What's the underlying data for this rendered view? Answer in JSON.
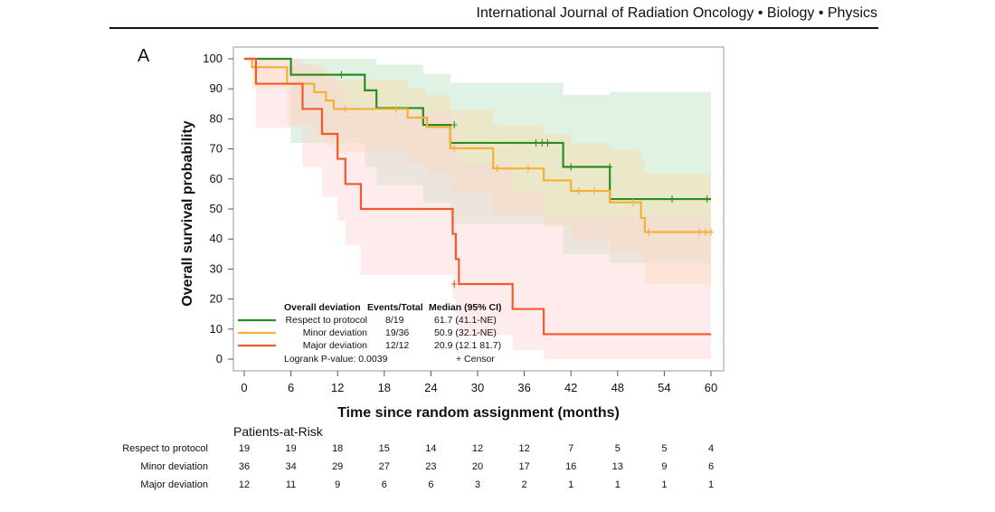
{
  "header": {
    "journal": "International Journal of Radiation Oncology • Biology • Physics",
    "panel": "A"
  },
  "chart_data": {
    "type": "line",
    "subtype": "kaplan-meier",
    "xlabel": "Time since random assignment (months)",
    "ylabel": "Overall survival probability",
    "xlim": [
      0,
      60
    ],
    "ylim": [
      0,
      100
    ],
    "xticks": [
      0,
      6,
      12,
      18,
      24,
      30,
      36,
      42,
      48,
      54,
      60
    ],
    "yticks": [
      0,
      10,
      20,
      30,
      40,
      50,
      60,
      70,
      80,
      90,
      100
    ],
    "legend": {
      "placement": "bottom-left",
      "header_group": "Overall deviation",
      "header_events": "Events/Total",
      "header_median": "Median (95% CI)",
      "logrank": "Logrank P-value: 0.0039",
      "censor": "+ Censor"
    },
    "series": [
      {
        "name": "Respect to protocol",
        "events": "8/19",
        "median": "61.7 (41.1-NE)",
        "color": "#2e8b22",
        "band_color": "#b9e3c4",
        "steps": [
          [
            0,
            100
          ],
          [
            6,
            94.7
          ],
          [
            15.5,
            89.5
          ],
          [
            17,
            83.6
          ],
          [
            23,
            78
          ],
          [
            26.5,
            72
          ],
          [
            41,
            64
          ],
          [
            47,
            53.3
          ],
          [
            60,
            53.3
          ]
        ],
        "ci_steps": [
          [
            0,
            100,
            100
          ],
          [
            6,
            100,
            72
          ],
          [
            15.5,
            100,
            64
          ],
          [
            17,
            98,
            58
          ],
          [
            23,
            95,
            52
          ],
          [
            26.5,
            92,
            45
          ],
          [
            41,
            88,
            35
          ],
          [
            47,
            89,
            32
          ],
          [
            60,
            89,
            32
          ]
        ],
        "censor": [
          [
            12.5,
            94.7
          ],
          [
            27,
            78
          ],
          [
            37.5,
            72
          ],
          [
            38.3,
            72
          ],
          [
            39,
            72
          ],
          [
            42,
            64
          ],
          [
            47,
            64
          ],
          [
            55,
            53.3
          ],
          [
            59.5,
            53.3
          ]
        ]
      },
      {
        "name": "Minor deviation",
        "events": "19/36",
        "median": "50.9 (32.1-NE)",
        "color": "#f2b035",
        "band_color": "#fbdcaa",
        "steps": [
          [
            0,
            100
          ],
          [
            1,
            97.2
          ],
          [
            5.5,
            91.7
          ],
          [
            9,
            88.9
          ],
          [
            10.5,
            86.1
          ],
          [
            11.5,
            83.3
          ],
          [
            21,
            80.4
          ],
          [
            23.5,
            77.3
          ],
          [
            26.5,
            70.2
          ],
          [
            32,
            63.5
          ],
          [
            38.5,
            59.5
          ],
          [
            42,
            56
          ],
          [
            47,
            52.2
          ],
          [
            51,
            47
          ],
          [
            51.5,
            42.3
          ],
          [
            60,
            42.3
          ]
        ],
        "ci_steps": [
          [
            0,
            100,
            100
          ],
          [
            1,
            100,
            90
          ],
          [
            5.5,
            98,
            78
          ],
          [
            9,
            97,
            74
          ],
          [
            10.5,
            95,
            71
          ],
          [
            11.5,
            93,
            69
          ],
          [
            21,
            90,
            65
          ],
          [
            23.5,
            88,
            62
          ],
          [
            26.5,
            83,
            55
          ],
          [
            32,
            78,
            48
          ],
          [
            38.5,
            75,
            44
          ],
          [
            42,
            72,
            40
          ],
          [
            47,
            70,
            36
          ],
          [
            51,
            66,
            32
          ],
          [
            51.5,
            62,
            25
          ],
          [
            60,
            62,
            25
          ]
        ],
        "censor": [
          [
            13,
            83.3
          ],
          [
            19.5,
            83.3
          ],
          [
            27,
            70.2
          ],
          [
            32.5,
            63.5
          ],
          [
            36.5,
            63.5
          ],
          [
            43,
            56
          ],
          [
            45,
            56
          ],
          [
            50,
            52.2
          ],
          [
            52,
            42.3
          ],
          [
            58.5,
            42.3
          ],
          [
            59.3,
            42.3
          ],
          [
            60,
            42.3
          ]
        ]
      },
      {
        "name": "Major deviation",
        "events": "12/12",
        "median": "20.9 (12.1 81.7)",
        "color": "#f05a2e",
        "band_color": "#fcd5d8",
        "steps": [
          [
            0,
            100
          ],
          [
            1.5,
            91.7
          ],
          [
            7.5,
            83.3
          ],
          [
            10,
            75
          ],
          [
            12,
            66.7
          ],
          [
            13,
            58.3
          ],
          [
            15,
            50
          ],
          [
            26.8,
            41.7
          ],
          [
            27.2,
            33.3
          ],
          [
            27.6,
            25
          ],
          [
            34.5,
            16.7
          ],
          [
            38.5,
            8.3
          ],
          [
            60,
            8.3
          ]
        ],
        "ci_steps": [
          [
            0,
            100,
            100
          ],
          [
            1.5,
            100,
            77
          ],
          [
            7.5,
            98,
            64
          ],
          [
            10,
            94,
            54
          ],
          [
            12,
            90,
            46
          ],
          [
            13,
            85,
            38
          ],
          [
            15,
            82,
            28
          ],
          [
            26.8,
            76,
            20
          ],
          [
            27.2,
            72,
            12
          ],
          [
            27.6,
            65,
            8
          ],
          [
            34.5,
            56,
            3
          ],
          [
            38.5,
            48,
            0
          ],
          [
            60,
            48,
            0
          ]
        ],
        "censor": [
          [
            27,
            25
          ]
        ]
      }
    ]
  },
  "risk_table": {
    "title": "Patients-at-Risk",
    "times": [
      0,
      6,
      12,
      18,
      24,
      30,
      36,
      42,
      48,
      54,
      60
    ],
    "rows": [
      {
        "label": "Respect to protocol",
        "values": [
          "19",
          "19",
          "18",
          "15",
          "14",
          "12",
          "12",
          "7",
          "5",
          "5",
          "4"
        ]
      },
      {
        "label": "Minor deviation",
        "values": [
          "36",
          "34",
          "29",
          "27",
          "23",
          "20",
          "17",
          "16",
          "13",
          "9",
          "6"
        ]
      },
      {
        "label": "Major deviation",
        "values": [
          "12",
          "11",
          "9",
          "6",
          "6",
          "3",
          "2",
          "1",
          "1",
          "1",
          "1"
        ]
      }
    ]
  }
}
